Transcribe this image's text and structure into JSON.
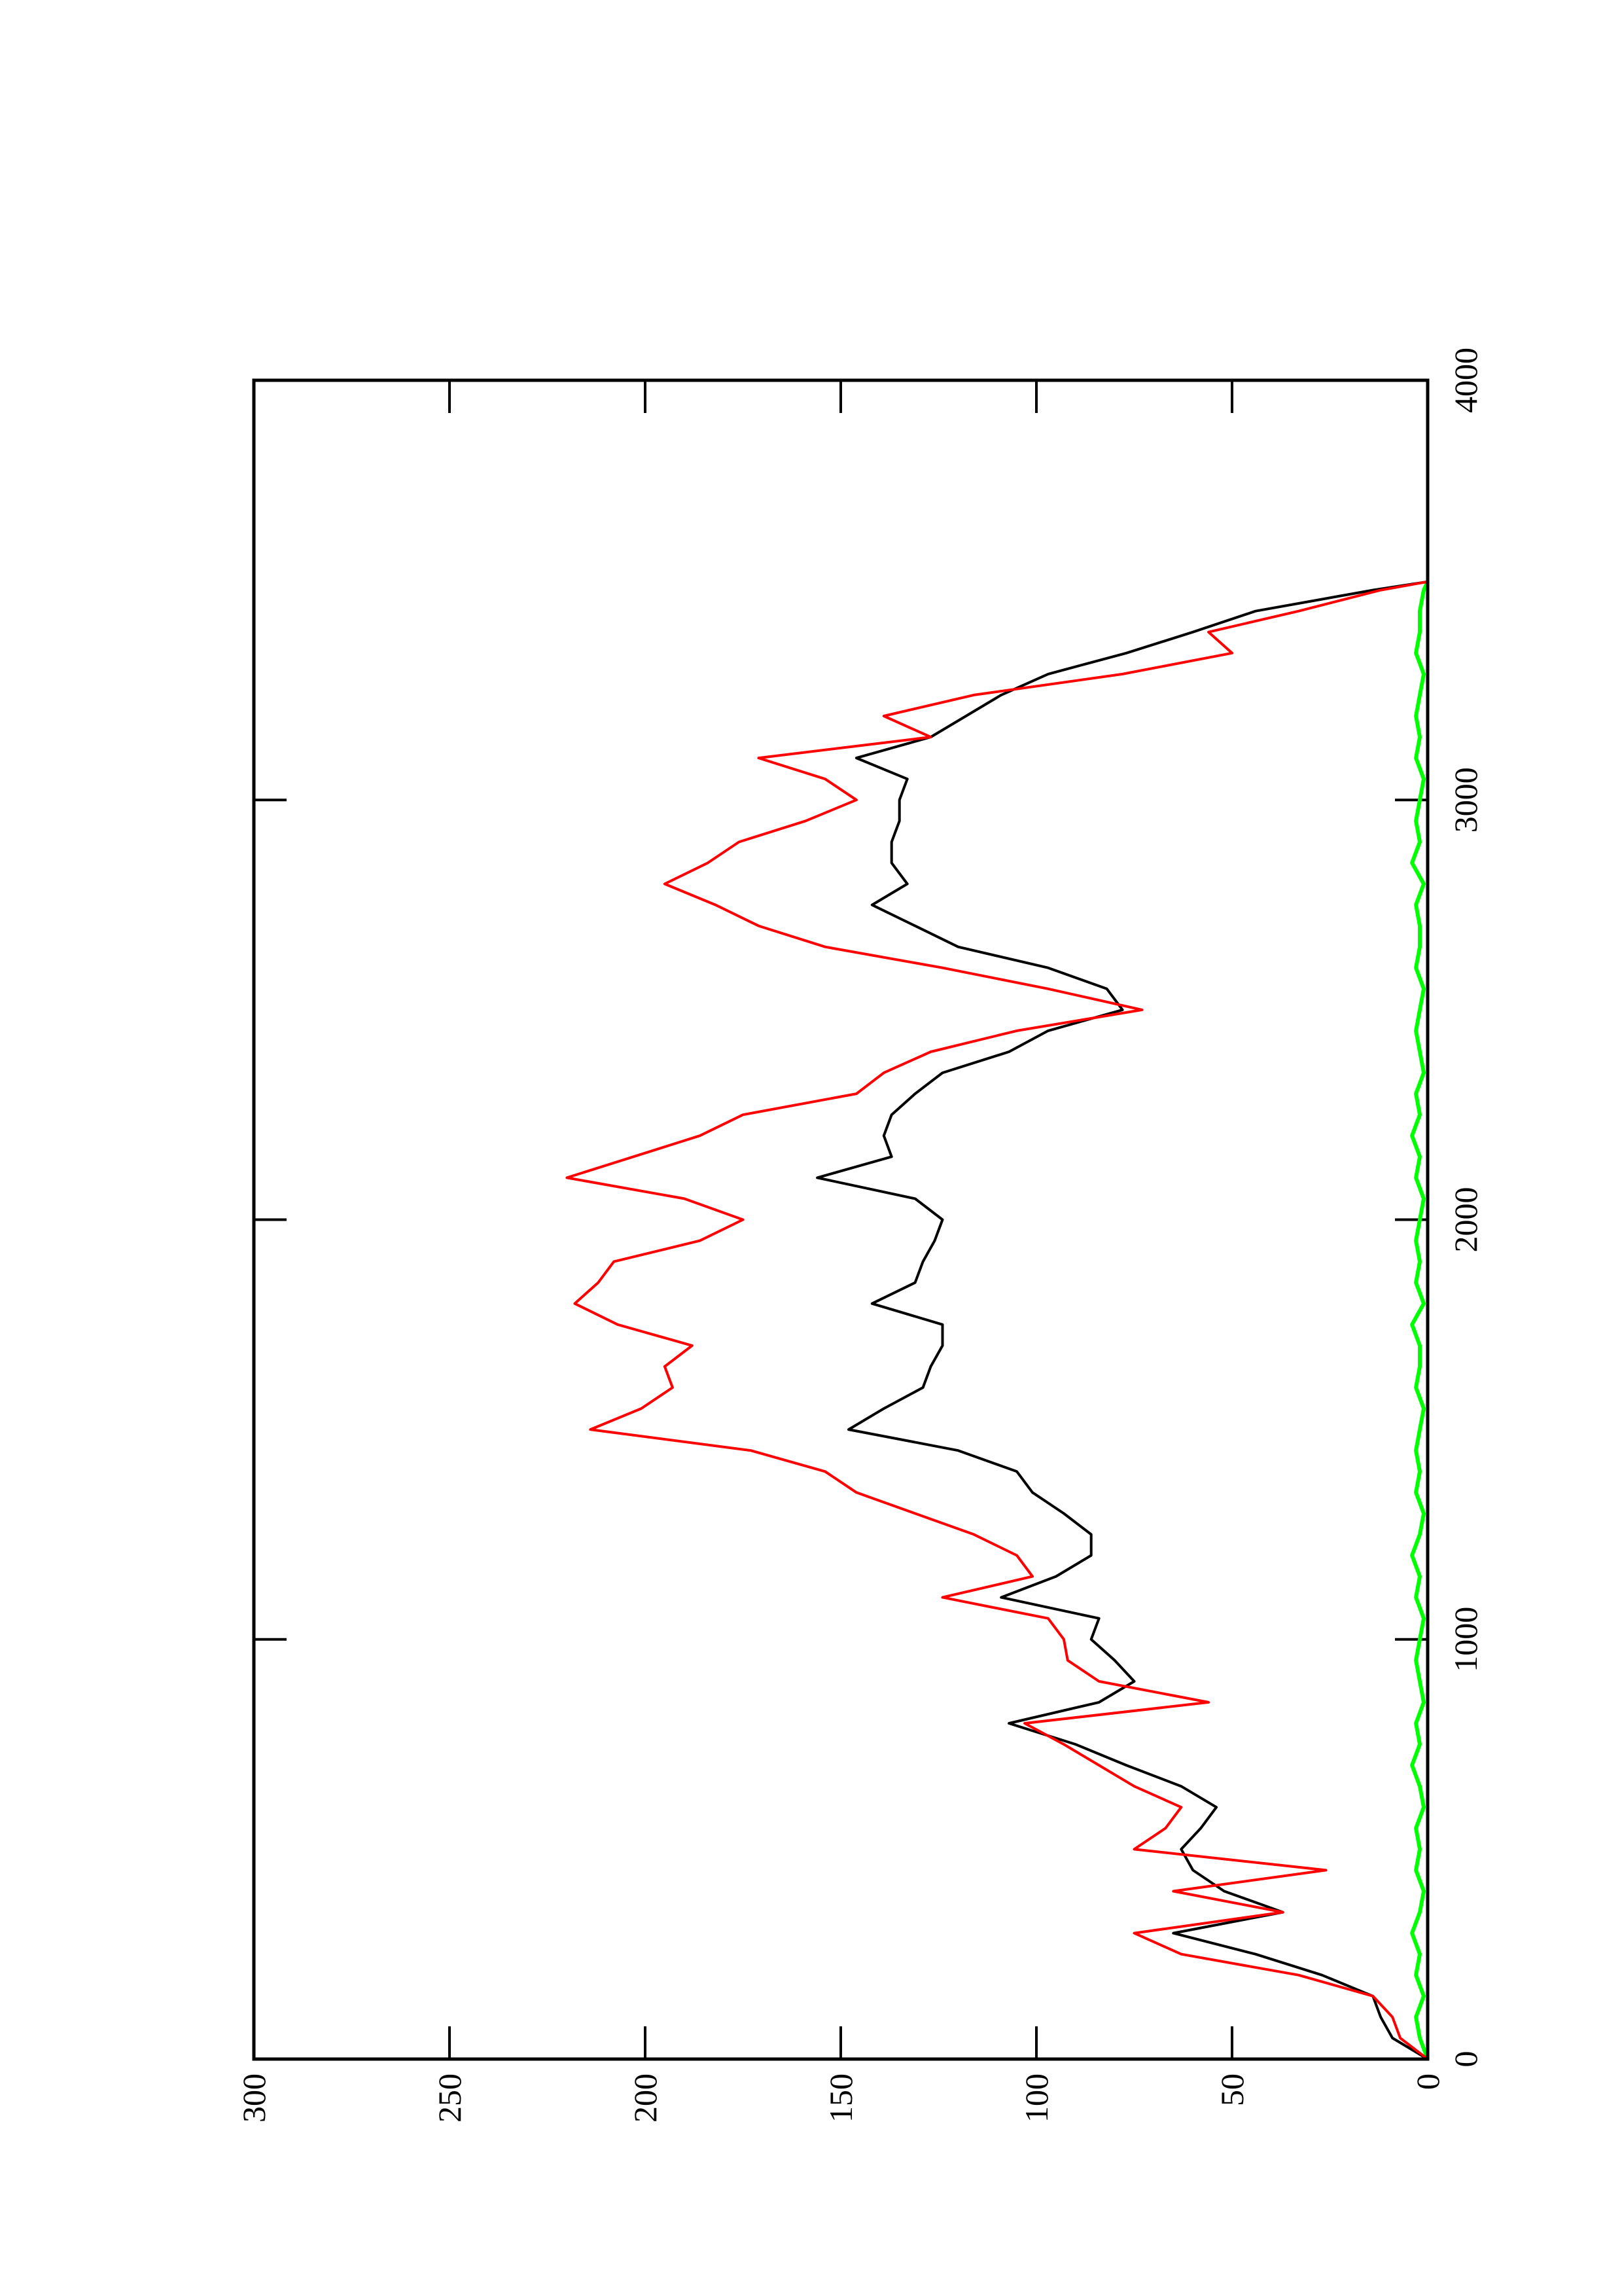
{
  "chart_data": {
    "type": "line",
    "x": [
      0,
      50,
      100,
      150,
      200,
      250,
      300,
      350,
      400,
      450,
      500,
      550,
      600,
      650,
      700,
      750,
      800,
      850,
      900,
      950,
      1000,
      1050,
      1100,
      1150,
      1200,
      1250,
      1300,
      1350,
      1400,
      1450,
      1500,
      1550,
      1600,
      1650,
      1700,
      1750,
      1800,
      1850,
      1900,
      1950,
      2000,
      2050,
      2100,
      2150,
      2200,
      2250,
      2300,
      2350,
      2400,
      2450,
      2500,
      2550,
      2600,
      2650,
      2700,
      2750,
      2800,
      2850,
      2900,
      2950,
      3000,
      3050,
      3100,
      3150,
      3200,
      3250,
      3300,
      3350,
      3400,
      3450,
      3500,
      3520
    ],
    "series": [
      {
        "color": "#000000",
        "values": [
          0,
          9,
          12,
          14,
          27,
          44,
          65,
          37,
          52,
          60,
          63,
          58,
          54,
          63,
          77,
          90,
          107,
          84,
          75,
          80,
          86,
          84,
          109,
          95,
          86,
          86,
          93,
          101,
          105,
          120,
          148,
          139,
          129,
          127,
          124,
          124,
          142,
          131,
          129,
          126,
          124,
          131,
          156,
          137,
          139,
          137,
          131,
          124,
          107,
          97,
          78,
          82,
          97,
          120,
          131,
          142,
          133,
          137,
          137,
          135,
          135,
          133,
          146,
          127,
          118,
          109,
          97,
          77,
          60,
          44,
          14,
          0
        ]
      },
      {
        "color": "#ff0000",
        "values": [
          0,
          7,
          9,
          14,
          33,
          63,
          75,
          37,
          65,
          26,
          75,
          67,
          63,
          75,
          84,
          93,
          103,
          56,
          84,
          92,
          93,
          97,
          124,
          101,
          105,
          116,
          131,
          146,
          154,
          173,
          214,
          201,
          193,
          195,
          188,
          207,
          218,
          212,
          208,
          186,
          175,
          190,
          220,
          203,
          186,
          175,
          146,
          139,
          127,
          105,
          73,
          97,
          124,
          154,
          171,
          182,
          195,
          184,
          176,
          159,
          146,
          154,
          171,
          127,
          139,
          116,
          78,
          50,
          56,
          33,
          12,
          0
        ]
      },
      {
        "color": "#00ff00",
        "values": [
          0,
          2,
          3,
          1,
          3,
          2,
          4,
          2,
          1,
          3,
          2,
          3,
          1,
          2,
          4,
          2,
          3,
          1,
          2,
          3,
          2,
          1,
          3,
          2,
          4,
          2,
          1,
          3,
          2,
          3,
          2,
          1,
          3,
          2,
          2,
          4,
          1,
          3,
          2,
          3,
          2,
          1,
          3,
          2,
          4,
          2,
          3,
          1,
          2,
          3,
          2,
          1,
          3,
          2,
          2,
          3,
          1,
          4,
          2,
          3,
          2,
          1,
          3,
          2,
          3,
          2,
          1,
          3,
          2,
          2,
          1,
          0
        ]
      }
    ],
    "xlim": [
      0,
      4000
    ],
    "xticks": [
      0,
      1000,
      2000,
      3000,
      4000
    ],
    "ylim": [
      0,
      300
    ],
    "yticks": [
      0,
      50,
      100,
      150,
      200,
      250,
      300
    ]
  }
}
